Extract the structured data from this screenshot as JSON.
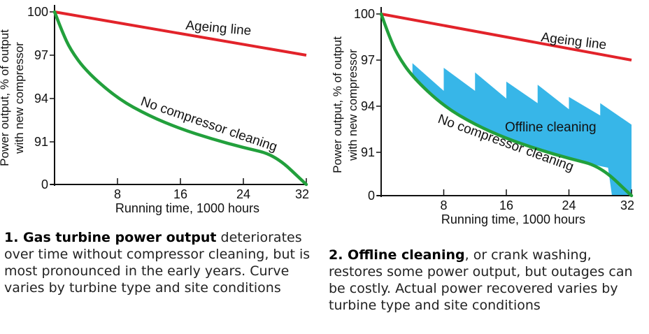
{
  "charts": [
    {
      "chart_data": {
        "type": "line",
        "ylabel_line1": "Power output, % of output",
        "ylabel_line2": "with new compressor",
        "xlabel": "Running time, 1000 hours",
        "x_ticks": [
          "8",
          "16",
          "24",
          "32"
        ],
        "y_ticks": [
          "100",
          "97",
          "94",
          "91",
          "0"
        ],
        "xlim": [
          0,
          32
        ],
        "series": [
          {
            "name": "Ageing line",
            "color": "#e2232a",
            "x": [
              0,
              32
            ],
            "y": [
              100,
              97
            ]
          },
          {
            "name": "No compressor cleaning",
            "color": "#22a03c",
            "x": [
              0,
              1,
              2,
              4,
              8,
              12,
              16,
              20,
              24,
              28,
              32
            ],
            "y": [
              100,
              98.6,
              97.4,
              95.9,
              94.0,
              92.8,
              91.9,
              91.2,
              90.6,
              90.1,
              89.7
            ]
          }
        ]
      },
      "caption": {
        "bold": "1. Gas turbine power output",
        "text": " deteriorates over time without compressor cleaning, but is most pronounced in the early years. Curve varies by turbine type and site conditions"
      }
    },
    {
      "chart_data": {
        "type": "area",
        "ylabel_line1": "Power output, % of output",
        "ylabel_line2": "with new compressor",
        "xlabel": "Running time, 1000 hours",
        "x_ticks": [
          "8",
          "16",
          "24",
          "32"
        ],
        "y_ticks": [
          "100",
          "97",
          "94",
          "91",
          "0"
        ],
        "xlim": [
          0,
          32
        ],
        "series": [
          {
            "name": "Ageing line",
            "color": "#e2232a",
            "x": [
              0,
              32
            ],
            "y": [
              100,
              97
            ]
          },
          {
            "name": "No compressor cleaning",
            "color": "#22a03c",
            "x": [
              0,
              1,
              2,
              4,
              8,
              12,
              16,
              20,
              24,
              28,
              32
            ],
            "y": [
              100,
              98.6,
              97.4,
              95.9,
              94.0,
              92.8,
              91.9,
              91.2,
              90.6,
              90.1,
              89.7
            ]
          },
          {
            "name": "Offline cleaning",
            "color": "#37b6e8",
            "x": [
              4,
              8,
              8,
              12,
              12,
              16,
              16,
              20,
              20,
              24,
              24,
              28,
              28,
              32
            ],
            "y": [
              96.8,
              95.0,
              96.5,
              95.0,
              96.2,
              94.5,
              95.6,
              94.2,
              95.4,
              93.8,
              94.6,
              93.4,
              94.2,
              92.8
            ]
          }
        ]
      },
      "caption": {
        "bold": "2. Offline cleaning",
        "text": ", or crank washing, restores some power output, but outages can be costly. Actual power recovered varies by turbine type and site conditions"
      }
    }
  ]
}
